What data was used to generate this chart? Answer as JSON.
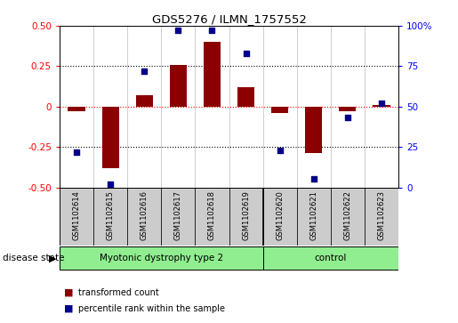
{
  "title": "GDS5276 / ILMN_1757552",
  "samples": [
    "GSM1102614",
    "GSM1102615",
    "GSM1102616",
    "GSM1102617",
    "GSM1102618",
    "GSM1102619",
    "GSM1102620",
    "GSM1102621",
    "GSM1102622",
    "GSM1102623"
  ],
  "bar_values": [
    -0.03,
    -0.38,
    0.07,
    0.26,
    0.4,
    0.12,
    -0.04,
    -0.29,
    -0.03,
    0.01
  ],
  "dot_values": [
    22,
    2,
    72,
    97,
    97,
    83,
    23,
    5,
    43,
    52
  ],
  "groups": [
    {
      "label": "Myotonic dystrophy type 2",
      "start": 0,
      "end": 6,
      "color": "#90EE90"
    },
    {
      "label": "control",
      "start": 6,
      "end": 10,
      "color": "#90EE90"
    }
  ],
  "ylim_left": [
    -0.5,
    0.5
  ],
  "ylim_right": [
    0,
    100
  ],
  "yticks_left": [
    -0.5,
    -0.25,
    0.0,
    0.25,
    0.5
  ],
  "yticks_right": [
    0,
    25,
    50,
    75,
    100
  ],
  "dotted_lines_black": [
    0.25,
    -0.25
  ],
  "dotted_line_red": 0.0,
  "bar_color": "#8B0000",
  "dot_color": "#00008B",
  "bar_width": 0.5,
  "group_divider": 6,
  "disease_state_label": "disease state",
  "legend_bar_label": "transformed count",
  "legend_dot_label": "percentile rank within the sample",
  "bg_color": "#FFFFFF",
  "sample_box_color": "#CCCCCC",
  "group_box_border": "#000000"
}
